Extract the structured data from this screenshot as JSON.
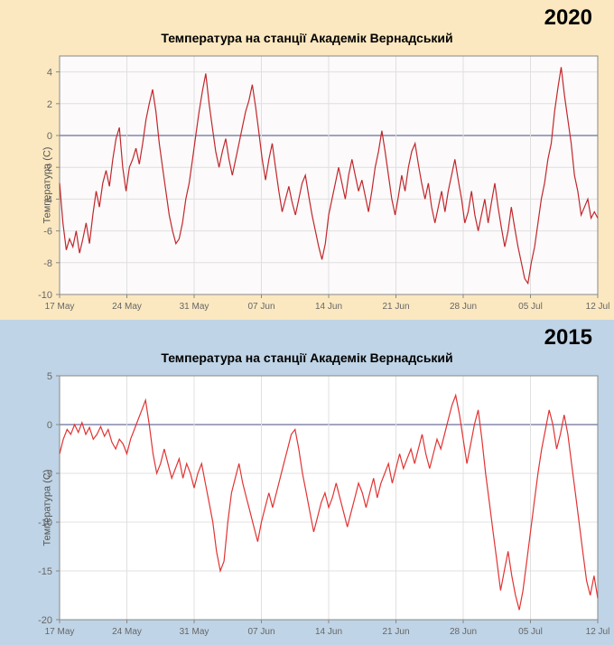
{
  "panels": [
    {
      "id": "2020",
      "year_label": "2020",
      "background_color": "#fbe8c0",
      "title": "Температура на станції Академік Вернадський",
      "ylabel": "Температура (С)",
      "type": "line",
      "x_categories": [
        "17 May",
        "24 May",
        "31 May",
        "07 Jun",
        "14 Jun",
        "21 Jun",
        "28 Jun",
        "05 Jul",
        "12 Jul"
      ],
      "ylim": [
        -10,
        5
      ],
      "ytick_step": 2,
      "yticks": [
        -10,
        -8,
        -6,
        -4,
        -2,
        0,
        2,
        4
      ],
      "zero_line": true,
      "line_color": "#c1272d",
      "line_width": 1.2,
      "plot_bg_color": "#fcfafa",
      "grid_color": "#e0e0e0",
      "axis_color": "#888",
      "zero_line_color": "#6a6f9a",
      "title_fontsize": 14,
      "label_fontsize": 11,
      "tick_fontsize": 11,
      "values": [
        -3.0,
        -5.5,
        -7.2,
        -6.5,
        -7.0,
        -6.0,
        -7.4,
        -6.5,
        -5.5,
        -6.8,
        -5.0,
        -3.5,
        -4.5,
        -3.0,
        -2.2,
        -3.2,
        -1.5,
        -0.2,
        0.5,
        -2.0,
        -3.5,
        -2.0,
        -1.5,
        -0.8,
        -1.8,
        -0.5,
        1.0,
        2.0,
        2.9,
        1.5,
        -0.5,
        -2.0,
        -3.5,
        -5.0,
        -6.0,
        -6.8,
        -6.5,
        -5.5,
        -4.0,
        -3.0,
        -1.5,
        0.0,
        1.5,
        2.8,
        3.9,
        2.0,
        0.5,
        -1.0,
        -2.0,
        -1.0,
        -0.2,
        -1.5,
        -2.5,
        -1.5,
        -0.5,
        0.5,
        1.5,
        2.2,
        3.2,
        1.8,
        0.2,
        -1.5,
        -2.8,
        -1.5,
        -0.5,
        -2.0,
        -3.5,
        -4.8,
        -4.0,
        -3.2,
        -4.2,
        -5.0,
        -4.0,
        -3.0,
        -2.5,
        -3.8,
        -5.0,
        -6.0,
        -7.0,
        -7.8,
        -6.8,
        -5.0,
        -4.0,
        -3.0,
        -2.0,
        -3.0,
        -4.0,
        -2.5,
        -1.5,
        -2.5,
        -3.5,
        -2.8,
        -3.8,
        -4.8,
        -3.5,
        -2.0,
        -1.0,
        0.3,
        -1.0,
        -2.5,
        -4.0,
        -5.0,
        -3.8,
        -2.5,
        -3.5,
        -2.0,
        -1.0,
        -0.5,
        -1.8,
        -3.0,
        -4.0,
        -3.0,
        -4.5,
        -5.5,
        -4.5,
        -3.5,
        -4.8,
        -3.5,
        -2.5,
        -1.5,
        -2.8,
        -4.0,
        -5.5,
        -4.8,
        -3.5,
        -5.0,
        -6.0,
        -5.0,
        -4.0,
        -5.5,
        -4.2,
        -3.0,
        -4.5,
        -5.8,
        -7.0,
        -6.0,
        -4.5,
        -5.8,
        -7.0,
        -8.0,
        -9.0,
        -9.3,
        -8.0,
        -7.0,
        -5.5,
        -4.0,
        -3.0,
        -1.5,
        -0.5,
        1.5,
        3.0,
        4.3,
        2.5,
        1.0,
        -0.5,
        -2.5,
        -3.5,
        -5.0,
        -4.5,
        -4.0,
        -5.2,
        -4.8,
        -5.2
      ]
    },
    {
      "id": "2015",
      "year_label": "2015",
      "background_color": "#bfd4e6",
      "title": "Температура на станції Академік Вернадський",
      "ylabel": "Температура (С)",
      "type": "line",
      "x_categories": [
        "17 May",
        "24 May",
        "31 May",
        "07 Jun",
        "14 Jun",
        "21 Jun",
        "28 Jun",
        "05 Jul",
        "12 Jul"
      ],
      "ylim": [
        -20,
        5
      ],
      "ytick_step": 5,
      "yticks": [
        -20,
        -15,
        -10,
        -5,
        0,
        5
      ],
      "zero_line": true,
      "line_color": "#e23333",
      "line_width": 1.2,
      "plot_bg_color": "#ffffff",
      "grid_color": "#e0e0e0",
      "axis_color": "#888",
      "zero_line_color": "#6a6f9a",
      "title_fontsize": 14,
      "label_fontsize": 11,
      "tick_fontsize": 11,
      "values": [
        -3.0,
        -1.5,
        -0.5,
        -1.0,
        0.0,
        -0.8,
        0.2,
        -1.0,
        -0.3,
        -1.5,
        -1.0,
        -0.2,
        -1.2,
        -0.5,
        -1.8,
        -2.5,
        -1.5,
        -2.0,
        -3.0,
        -1.5,
        -0.5,
        0.5,
        1.5,
        2.5,
        0.0,
        -3.0,
        -5.0,
        -4.0,
        -2.5,
        -4.0,
        -5.5,
        -4.5,
        -3.5,
        -5.5,
        -4.0,
        -5.0,
        -6.5,
        -5.0,
        -4.0,
        -6.0,
        -8.0,
        -10.0,
        -13.0,
        -15.0,
        -14.0,
        -10.0,
        -7.0,
        -5.5,
        -4.0,
        -6.0,
        -7.5,
        -9.0,
        -10.5,
        -12.0,
        -10.0,
        -8.5,
        -7.0,
        -8.5,
        -7.0,
        -5.5,
        -4.0,
        -2.5,
        -1.0,
        -0.5,
        -2.5,
        -5.0,
        -7.0,
        -9.0,
        -11.0,
        -9.5,
        -8.0,
        -7.0,
        -8.5,
        -7.5,
        -6.0,
        -7.5,
        -9.0,
        -10.5,
        -9.0,
        -7.5,
        -6.0,
        -7.0,
        -8.5,
        -7.0,
        -5.5,
        -7.5,
        -6.0,
        -5.0,
        -4.0,
        -6.0,
        -4.5,
        -3.0,
        -4.5,
        -3.5,
        -2.5,
        -4.0,
        -2.5,
        -1.0,
        -3.0,
        -4.5,
        -3.0,
        -1.5,
        -2.5,
        -1.0,
        0.5,
        2.0,
        3.0,
        1.0,
        -1.5,
        -4.0,
        -2.0,
        0.0,
        1.5,
        -1.5,
        -5.0,
        -8.0,
        -11.0,
        -14.0,
        -17.0,
        -15.0,
        -13.0,
        -15.5,
        -17.5,
        -19.0,
        -17.0,
        -14.0,
        -11.0,
        -8.0,
        -5.0,
        -2.5,
        -0.5,
        1.5,
        0.0,
        -2.5,
        -1.0,
        1.0,
        -1.0,
        -4.0,
        -7.0,
        -10.0,
        -13.0,
        -16.0,
        -17.5,
        -15.5,
        -17.8
      ]
    }
  ]
}
